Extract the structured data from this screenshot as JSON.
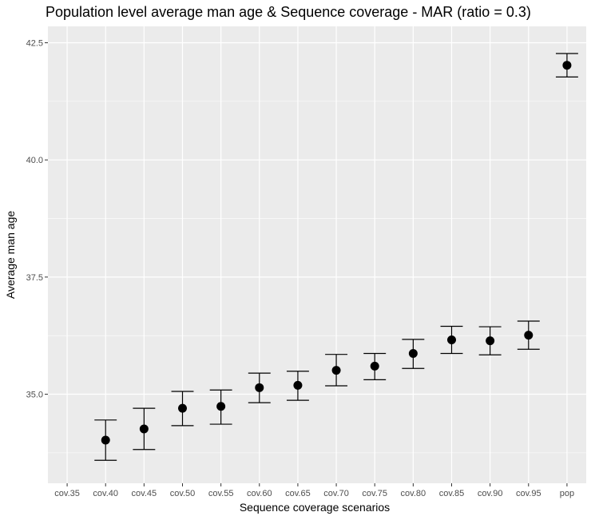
{
  "chart_data": {
    "type": "scatter",
    "title": "Population level average man age & Sequence coverage - MAR (ratio = 0.3)",
    "xlabel": "Sequence coverage scenarios",
    "ylabel": "Average man age",
    "categories": [
      "cov.35",
      "cov.40",
      "cov.45",
      "cov.50",
      "cov.55",
      "cov.60",
      "cov.65",
      "cov.70",
      "cov.75",
      "cov.80",
      "cov.85",
      "cov.90",
      "cov.95",
      "pop"
    ],
    "ylim": [
      33.1,
      42.85
    ],
    "yticks": [
      35.0,
      37.5,
      40.0,
      42.5
    ],
    "ytick_labels": [
      "35.0",
      "37.5",
      "40.0",
      "42.5"
    ],
    "grid": true,
    "background_color": "#ebebeb",
    "grid_color": "#ffffff",
    "point_color": "#000000",
    "series": [
      {
        "values": [
          null,
          34.02,
          34.26,
          34.7,
          34.74,
          35.14,
          35.19,
          35.51,
          35.6,
          35.87,
          36.16,
          36.14,
          36.26,
          42.02
        ],
        "lower": [
          null,
          33.59,
          33.82,
          34.33,
          34.36,
          34.82,
          34.87,
          35.18,
          35.31,
          35.55,
          35.87,
          35.84,
          35.96,
          41.77
        ],
        "upper": [
          null,
          34.45,
          34.7,
          35.06,
          35.09,
          35.45,
          35.49,
          35.85,
          35.87,
          36.17,
          36.45,
          36.44,
          36.56,
          42.27
        ]
      }
    ]
  }
}
